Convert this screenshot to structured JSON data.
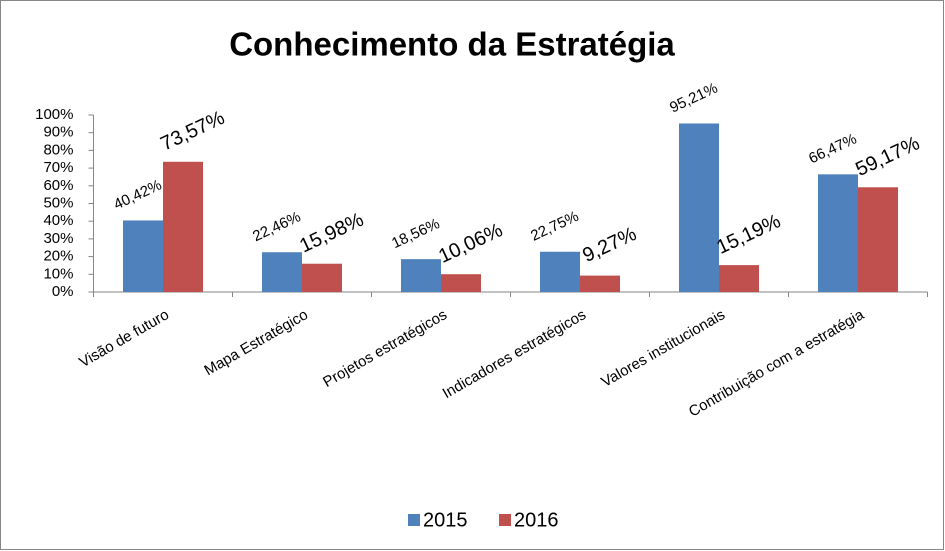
{
  "chart_data": {
    "type": "bar",
    "title": "Conhecimento da Estratégia",
    "categories": [
      "Visão de futuro",
      "Mapa Estratégico",
      "Projetos estratégicos",
      "Indicadores estratégicos",
      "Valores institucionais",
      "Contribuição com a estratégia"
    ],
    "series": [
      {
        "name": "2015",
        "color": "#4f81bd",
        "values": [
          40.42,
          22.46,
          18.56,
          22.75,
          95.21,
          66.47
        ],
        "value_labels": [
          "40,42%",
          "22,46%",
          "18,56%",
          "22,75%",
          "95,21%",
          "66,47%"
        ]
      },
      {
        "name": "2016",
        "color": "#c0504d",
        "values": [
          73.57,
          15.98,
          10.06,
          9.27,
          15.19,
          59.17
        ],
        "value_labels": [
          "73,57%",
          "15,98%",
          "10,06%",
          "9,27%",
          "15,19%",
          "59,17%"
        ]
      }
    ],
    "ylim": [
      0,
      100
    ],
    "yticks": [
      {
        "value": 0,
        "label": "0%"
      },
      {
        "value": 10,
        "label": "10%"
      },
      {
        "value": 20,
        "label": "20%"
      },
      {
        "value": 30,
        "label": "30%"
      },
      {
        "value": 40,
        "label": "40%"
      },
      {
        "value": 50,
        "label": "50%"
      },
      {
        "value": 60,
        "label": "60%"
      },
      {
        "value": 70,
        "label": "70%"
      },
      {
        "value": 80,
        "label": "80%"
      },
      {
        "value": 90,
        "label": "90%"
      },
      {
        "value": 100,
        "label": "100%"
      }
    ],
    "grid": false,
    "legend": "bottom"
  }
}
